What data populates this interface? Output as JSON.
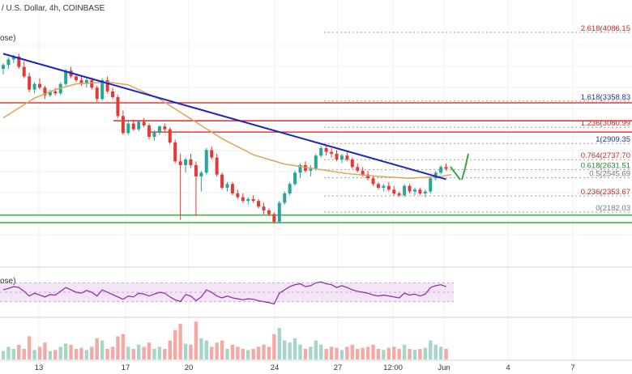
{
  "header": {
    "title": "/ U.S. Dollar, 4h, COINBASE",
    "main_label": "ose)",
    "rsi_label": "ose)"
  },
  "colors": {
    "up": "#26a69a",
    "down": "#e53935",
    "trendline": "#1a23c8",
    "ma": "#e0a45a",
    "resistance": "#e53935",
    "support": "#4caf50",
    "rsi": "#8e24aa",
    "rsi_band": "#f3e5f5",
    "fib_neutral": "#777777",
    "fib_blue": "#1e3a8a",
    "fib_red": "#c62828",
    "fib_green": "#2e7d32",
    "arrow": "#43a047"
  },
  "chart_data": {
    "type": "candlestick",
    "x_ticks": [
      "13",
      "17",
      "20",
      "24",
      "27",
      "12:00",
      "Jun",
      "4",
      "7"
    ],
    "fib_levels": [
      {
        "ratio": "2.618",
        "value": "4086.15",
        "color": "fib_red"
      },
      {
        "ratio": "1.618",
        "value": "3358.83",
        "color": "fib_blue"
      },
      {
        "ratio": "1.236",
        "value": "3080.99",
        "color": "fib_red"
      },
      {
        "ratio": "1",
        "value": "2909.35",
        "color": "fib_blue"
      },
      {
        "ratio": "0.764",
        "value": "2737.70",
        "color": "fib_red"
      },
      {
        "ratio": "0.618",
        "value": "2631.51",
        "color": "fib_green"
      },
      {
        "ratio": "0.5",
        "value": "2545.69",
        "color": "fib_neutral"
      },
      {
        "ratio": "0.236",
        "value": "2353.67",
        "color": "fib_red"
      },
      {
        "ratio": "0",
        "value": "2182.03",
        "color": "fib_neutral"
      }
    ],
    "candles": [
      [
        3700,
        3760,
        3640,
        3740
      ],
      [
        3740,
        3820,
        3700,
        3800
      ],
      [
        3800,
        3850,
        3760,
        3830
      ],
      [
        3830,
        3860,
        3700,
        3720
      ],
      [
        3720,
        3780,
        3600,
        3620
      ],
      [
        3620,
        3660,
        3450,
        3480
      ],
      [
        3480,
        3560,
        3440,
        3540
      ],
      [
        3540,
        3600,
        3480,
        3500
      ],
      [
        3500,
        3520,
        3380,
        3420
      ],
      [
        3420,
        3480,
        3400,
        3460
      ],
      [
        3460,
        3500,
        3420,
        3440
      ],
      [
        3440,
        3560,
        3420,
        3540
      ],
      [
        3540,
        3700,
        3520,
        3680
      ],
      [
        3680,
        3720,
        3600,
        3620
      ],
      [
        3620,
        3640,
        3560,
        3580
      ],
      [
        3580,
        3620,
        3520,
        3540
      ],
      [
        3540,
        3600,
        3500,
        3580
      ],
      [
        3580,
        3610,
        3480,
        3500
      ],
      [
        3500,
        3520,
        3350,
        3380
      ],
      [
        3380,
        3600,
        3360,
        3580
      ],
      [
        3580,
        3620,
        3440,
        3460
      ],
      [
        3460,
        3500,
        3380,
        3400
      ],
      [
        3400,
        3420,
        3180,
        3200
      ],
      [
        3200,
        3260,
        3000,
        3020
      ],
      [
        3020,
        3140,
        3000,
        3120
      ],
      [
        3120,
        3160,
        3040,
        3060
      ],
      [
        3060,
        3160,
        3040,
        3140
      ],
      [
        3140,
        3180,
        3080,
        3100
      ],
      [
        3100,
        3120,
        2950,
        2980
      ],
      [
        2980,
        3050,
        2940,
        3030
      ],
      [
        3030,
        3100,
        3000,
        3090
      ],
      [
        3090,
        3120,
        3040,
        3060
      ],
      [
        3060,
        3080,
        2900,
        2920
      ],
      [
        2920,
        2950,
        2700,
        2720
      ],
      [
        2720,
        2800,
        2100,
        2680
      ],
      [
        2680,
        2760,
        2600,
        2740
      ],
      [
        2740,
        2800,
        2650,
        2680
      ],
      [
        2680,
        2720,
        2140,
        2560
      ],
      [
        2560,
        2620,
        2400,
        2600
      ],
      [
        2600,
        2860,
        2580,
        2840
      ],
      [
        2840,
        2880,
        2740,
        2760
      ],
      [
        2760,
        2800,
        2560,
        2580
      ],
      [
        2580,
        2600,
        2420,
        2440
      ],
      [
        2440,
        2500,
        2400,
        2480
      ],
      [
        2480,
        2500,
        2360,
        2380
      ],
      [
        2380,
        2420,
        2320,
        2340
      ],
      [
        2340,
        2380,
        2280,
        2300
      ],
      [
        2300,
        2340,
        2260,
        2320
      ],
      [
        2320,
        2360,
        2280,
        2300
      ],
      [
        2300,
        2320,
        2220,
        2240
      ],
      [
        2240,
        2280,
        2160,
        2200
      ],
      [
        2200,
        2220,
        2140,
        2160
      ],
      [
        2160,
        2180,
        2060,
        2080
      ],
      [
        2080,
        2300,
        2060,
        2280
      ],
      [
        2280,
        2400,
        2260,
        2380
      ],
      [
        2380,
        2500,
        2360,
        2480
      ],
      [
        2480,
        2620,
        2460,
        2600
      ],
      [
        2600,
        2700,
        2540,
        2680
      ],
      [
        2680,
        2720,
        2600,
        2620
      ],
      [
        2620,
        2680,
        2560,
        2640
      ],
      [
        2640,
        2800,
        2620,
        2780
      ],
      [
        2780,
        2880,
        2760,
        2860
      ],
      [
        2860,
        2880,
        2780,
        2820
      ],
      [
        2820,
        2860,
        2760,
        2800
      ],
      [
        2800,
        2840,
        2720,
        2740
      ],
      [
        2740,
        2800,
        2700,
        2780
      ],
      [
        2780,
        2820,
        2720,
        2740
      ],
      [
        2740,
        2760,
        2640,
        2660
      ],
      [
        2660,
        2700,
        2600,
        2620
      ],
      [
        2620,
        2660,
        2560,
        2580
      ],
      [
        2580,
        2620,
        2520,
        2540
      ],
      [
        2540,
        2560,
        2460,
        2480
      ],
      [
        2480,
        2500,
        2420,
        2440
      ],
      [
        2440,
        2480,
        2400,
        2460
      ],
      [
        2460,
        2500,
        2400,
        2420
      ],
      [
        2420,
        2460,
        2360,
        2380
      ],
      [
        2380,
        2400,
        2340,
        2360
      ],
      [
        2360,
        2480,
        2340,
        2460
      ],
      [
        2460,
        2480,
        2380,
        2400
      ],
      [
        2400,
        2440,
        2360,
        2420
      ],
      [
        2420,
        2440,
        2360,
        2380
      ],
      [
        2380,
        2420,
        2340,
        2400
      ],
      [
        2400,
        2560,
        2380,
        2540
      ],
      [
        2540,
        2620,
        2520,
        2600
      ],
      [
        2600,
        2680,
        2580,
        2660
      ],
      [
        2660,
        2700,
        2620,
        2640
      ]
    ],
    "trendline": [
      [
        0,
        3860
      ],
      [
        85,
        2530
      ]
    ],
    "ma": [
      [
        0,
        3180
      ],
      [
        6,
        3390
      ],
      [
        10,
        3480
      ],
      [
        14,
        3540
      ],
      [
        20,
        3560
      ],
      [
        24,
        3530
      ],
      [
        30,
        3380
      ],
      [
        36,
        3170
      ],
      [
        42,
        2960
      ],
      [
        48,
        2790
      ],
      [
        54,
        2690
      ],
      [
        60,
        2640
      ],
      [
        66,
        2590
      ],
      [
        72,
        2560
      ],
      [
        78,
        2540
      ],
      [
        84,
        2560
      ],
      [
        86,
        2580
      ]
    ],
    "resistance_lines": [
      3340,
      3150,
      3030
    ],
    "support_lines": [
      2150,
      2070
    ],
    "rsi": [
      55,
      58,
      62,
      60,
      52,
      42,
      48,
      44,
      40,
      45,
      44,
      52,
      60,
      55,
      50,
      48,
      54,
      50,
      42,
      55,
      50,
      45,
      40,
      35,
      42,
      40,
      48,
      46,
      42,
      46,
      50,
      48,
      40,
      34,
      30,
      45,
      42,
      32,
      40,
      55,
      50,
      42,
      38,
      42,
      38,
      36,
      34,
      36,
      35,
      32,
      30,
      28,
      25,
      48,
      55,
      62,
      66,
      68,
      62,
      64,
      70,
      72,
      68,
      66,
      60,
      64,
      60,
      55,
      52,
      50,
      48,
      44,
      42,
      44,
      42,
      40,
      38,
      48,
      44,
      46,
      42,
      46,
      60,
      64,
      66,
      62
    ],
    "volume": [
      8,
      12,
      10,
      14,
      10,
      22,
      9,
      12,
      16,
      8,
      9,
      12,
      15,
      14,
      10,
      11,
      9,
      12,
      20,
      18,
      10,
      12,
      22,
      24,
      12,
      10,
      14,
      12,
      16,
      10,
      12,
      10,
      18,
      28,
      34,
      15,
      14,
      36,
      20,
      18,
      12,
      16,
      18,
      10,
      14,
      12,
      10,
      9,
      10,
      12,
      14,
      12,
      24,
      30,
      18,
      16,
      20,
      14,
      10,
      12,
      18,
      14,
      10,
      12,
      11,
      9,
      12,
      14,
      10,
      11,
      12,
      14,
      10,
      9,
      11,
      12,
      10,
      14,
      10,
      9,
      10,
      11,
      18,
      14,
      12,
      10
    ]
  }
}
